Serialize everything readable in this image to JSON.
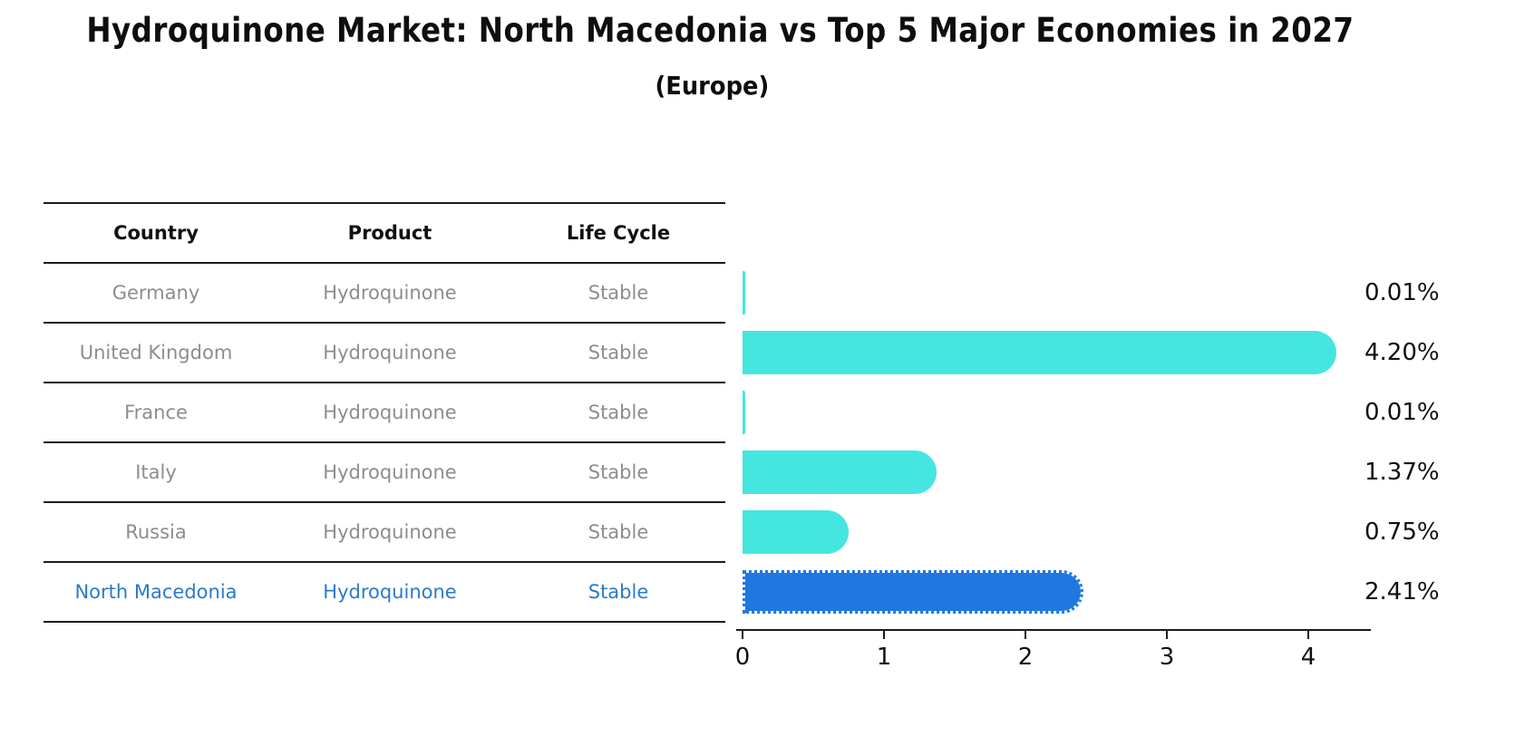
{
  "page": {
    "title": "Hydroquinone Market: North Macedonia vs Top 5 Major Economies in 2027",
    "subtitle": "(Europe)"
  },
  "colors": {
    "bar_default": "#45e6df",
    "bar_highlight": "#1e78e0",
    "highlight_text": "#2b7bc9",
    "row_text": "#8d8d8d",
    "axis": "#1b1b1b"
  },
  "table": {
    "headers": [
      "Country",
      "Product",
      "Life Cycle"
    ],
    "rows": [
      {
        "country": "Germany",
        "product": "Hydroquinone",
        "life_cycle": "Stable",
        "highlighted": false
      },
      {
        "country": "United Kingdom",
        "product": "Hydroquinone",
        "life_cycle": "Stable",
        "highlighted": false
      },
      {
        "country": "France",
        "product": "Hydroquinone",
        "life_cycle": "Stable",
        "highlighted": false
      },
      {
        "country": "Italy",
        "product": "Hydroquinone",
        "life_cycle": "Stable",
        "highlighted": false
      },
      {
        "country": "Russia",
        "product": "Hydroquinone",
        "life_cycle": "Stable",
        "highlighted": false
      },
      {
        "country": "North Macedonia",
        "product": "Hydroquinone",
        "life_cycle": "Stable",
        "highlighted": true
      }
    ]
  },
  "chart_data": {
    "type": "bar",
    "orientation": "horizontal",
    "title": "Hydroquinone Market: North Macedonia vs Top 5 Major Economies in 2027",
    "subtitle": "(Europe)",
    "categories": [
      "Germany",
      "United Kingdom",
      "France",
      "Italy",
      "Russia",
      "North Macedonia"
    ],
    "values": [
      0.01,
      4.2,
      0.01,
      1.37,
      0.75,
      2.41
    ],
    "value_labels": [
      "0.01%",
      "4.20%",
      "0.01%",
      "1.37%",
      "0.75%",
      "2.41%"
    ],
    "highlight_index": 5,
    "xticks": [
      0,
      1,
      2,
      3,
      4
    ],
    "xlim": [
      0,
      4.45
    ],
    "grid": false,
    "legend": false
  }
}
